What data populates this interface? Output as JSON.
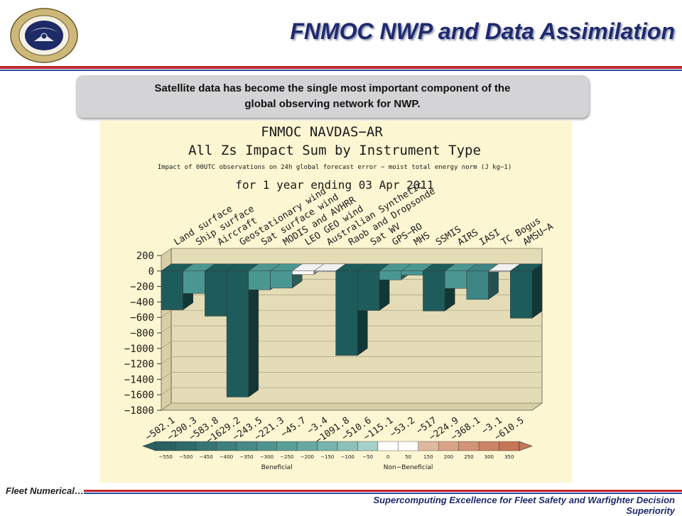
{
  "slide": {
    "title": "FNMOC NWP and Data Assimilation",
    "callout_line1": "Satellite data has become the single most important component of the",
    "callout_line2": "global observing network for NWP.",
    "footer_left": "Fleet Numerical…",
    "footer_right": "Supercomputing Excellence for Fleet Safety and Warfighter Decision Superiority",
    "logo_text": "FLEET NUMERICAL METEOROLOGY AND OCEANOGRAPHY CENTER • MONTEREY, CALIFORNIA"
  },
  "colors": {
    "title": "#1f2a6e",
    "rule_red": "#c0272d",
    "rule_blue": "#2b4aa0",
    "panel": "#fdf6d2",
    "bar_dark": "#1e5c5c",
    "bar_mid": "#3d8585",
    "bar_light": "#7ab8b4",
    "bar_white": "#ffffff",
    "wall": "#e4dcb6"
  },
  "chart_data": {
    "type": "bar",
    "title": "FNMOC NAVDAS−AR",
    "subtitle": "All Zs Impact Sum by Instrument Type",
    "note": "Impact of 00UTC observations on 24h global forecast error − moist total energy norm (J kg−1)",
    "period": "for 1 year ending 03 Apr 2011",
    "categories": [
      "Land surface",
      "Ship surface",
      "Aircraft",
      "Geostationary wind",
      "Sat surface wind",
      "MODIS and AVHRR",
      "LEO GEO wind",
      "Australian Synthetic",
      "Raob and Dropsonde",
      "Sat WV",
      "GPS−RO",
      "MHS",
      "SSMIS",
      "AIRS",
      "IASI",
      "TC Bogus",
      "AMSU−A"
    ],
    "values": [
      -502.1,
      -290.3,
      -583.8,
      -1629.2,
      -243.5,
      -221.3,
      -45.7,
      -3.4,
      -1091.8,
      -510.6,
      -115.1,
      -53.2,
      -517,
      -224.9,
      -368.1,
      -3.1,
      -610.5
    ],
    "value_labels": [
      "−502.1",
      "−290.3",
      "−583.8",
      "−1629.2",
      "−243.5",
      "−221.3",
      "−45.7",
      "−3.4",
      "−1091.8",
      "−510.6",
      "−115.1",
      "−53.2",
      "−517",
      "−224.9",
      "−368.1",
      "−3.1",
      "−610.5"
    ],
    "yticks": [
      200,
      0,
      -200,
      -400,
      -600,
      -800,
      -1000,
      -1200,
      -1400,
      -1600,
      -1800
    ],
    "ytick_labels": [
      "200",
      "0",
      "−200",
      "−400",
      "−600",
      "−800",
      "−1000",
      "−1200",
      "−1400",
      "−1600",
      "−1800"
    ],
    "ylim": [
      -1800,
      200
    ],
    "grid": true,
    "colorbar": {
      "labels": [
        "−550",
        "−500",
        "−450",
        "−400",
        "−350",
        "−300",
        "−250",
        "−200",
        "−150",
        "−100",
        "−50",
        "0",
        "50",
        "150",
        "200",
        "250",
        "300",
        "350"
      ],
      "colors": [
        "#2b6060",
        "#2f6a68",
        "#377572",
        "#3e807c",
        "#468a86",
        "#4f948f",
        "#5a9e98",
        "#68a8a2",
        "#78b2ac",
        "#8cc0ba",
        "#a6d0ca",
        "#ffffff",
        "#ffffff",
        "#e0b7a0",
        "#d9a489",
        "#d29477",
        "#cb8466",
        "#c47656"
      ],
      "left_label": "Beneficial",
      "right_label": "Non−Beneficial"
    }
  }
}
